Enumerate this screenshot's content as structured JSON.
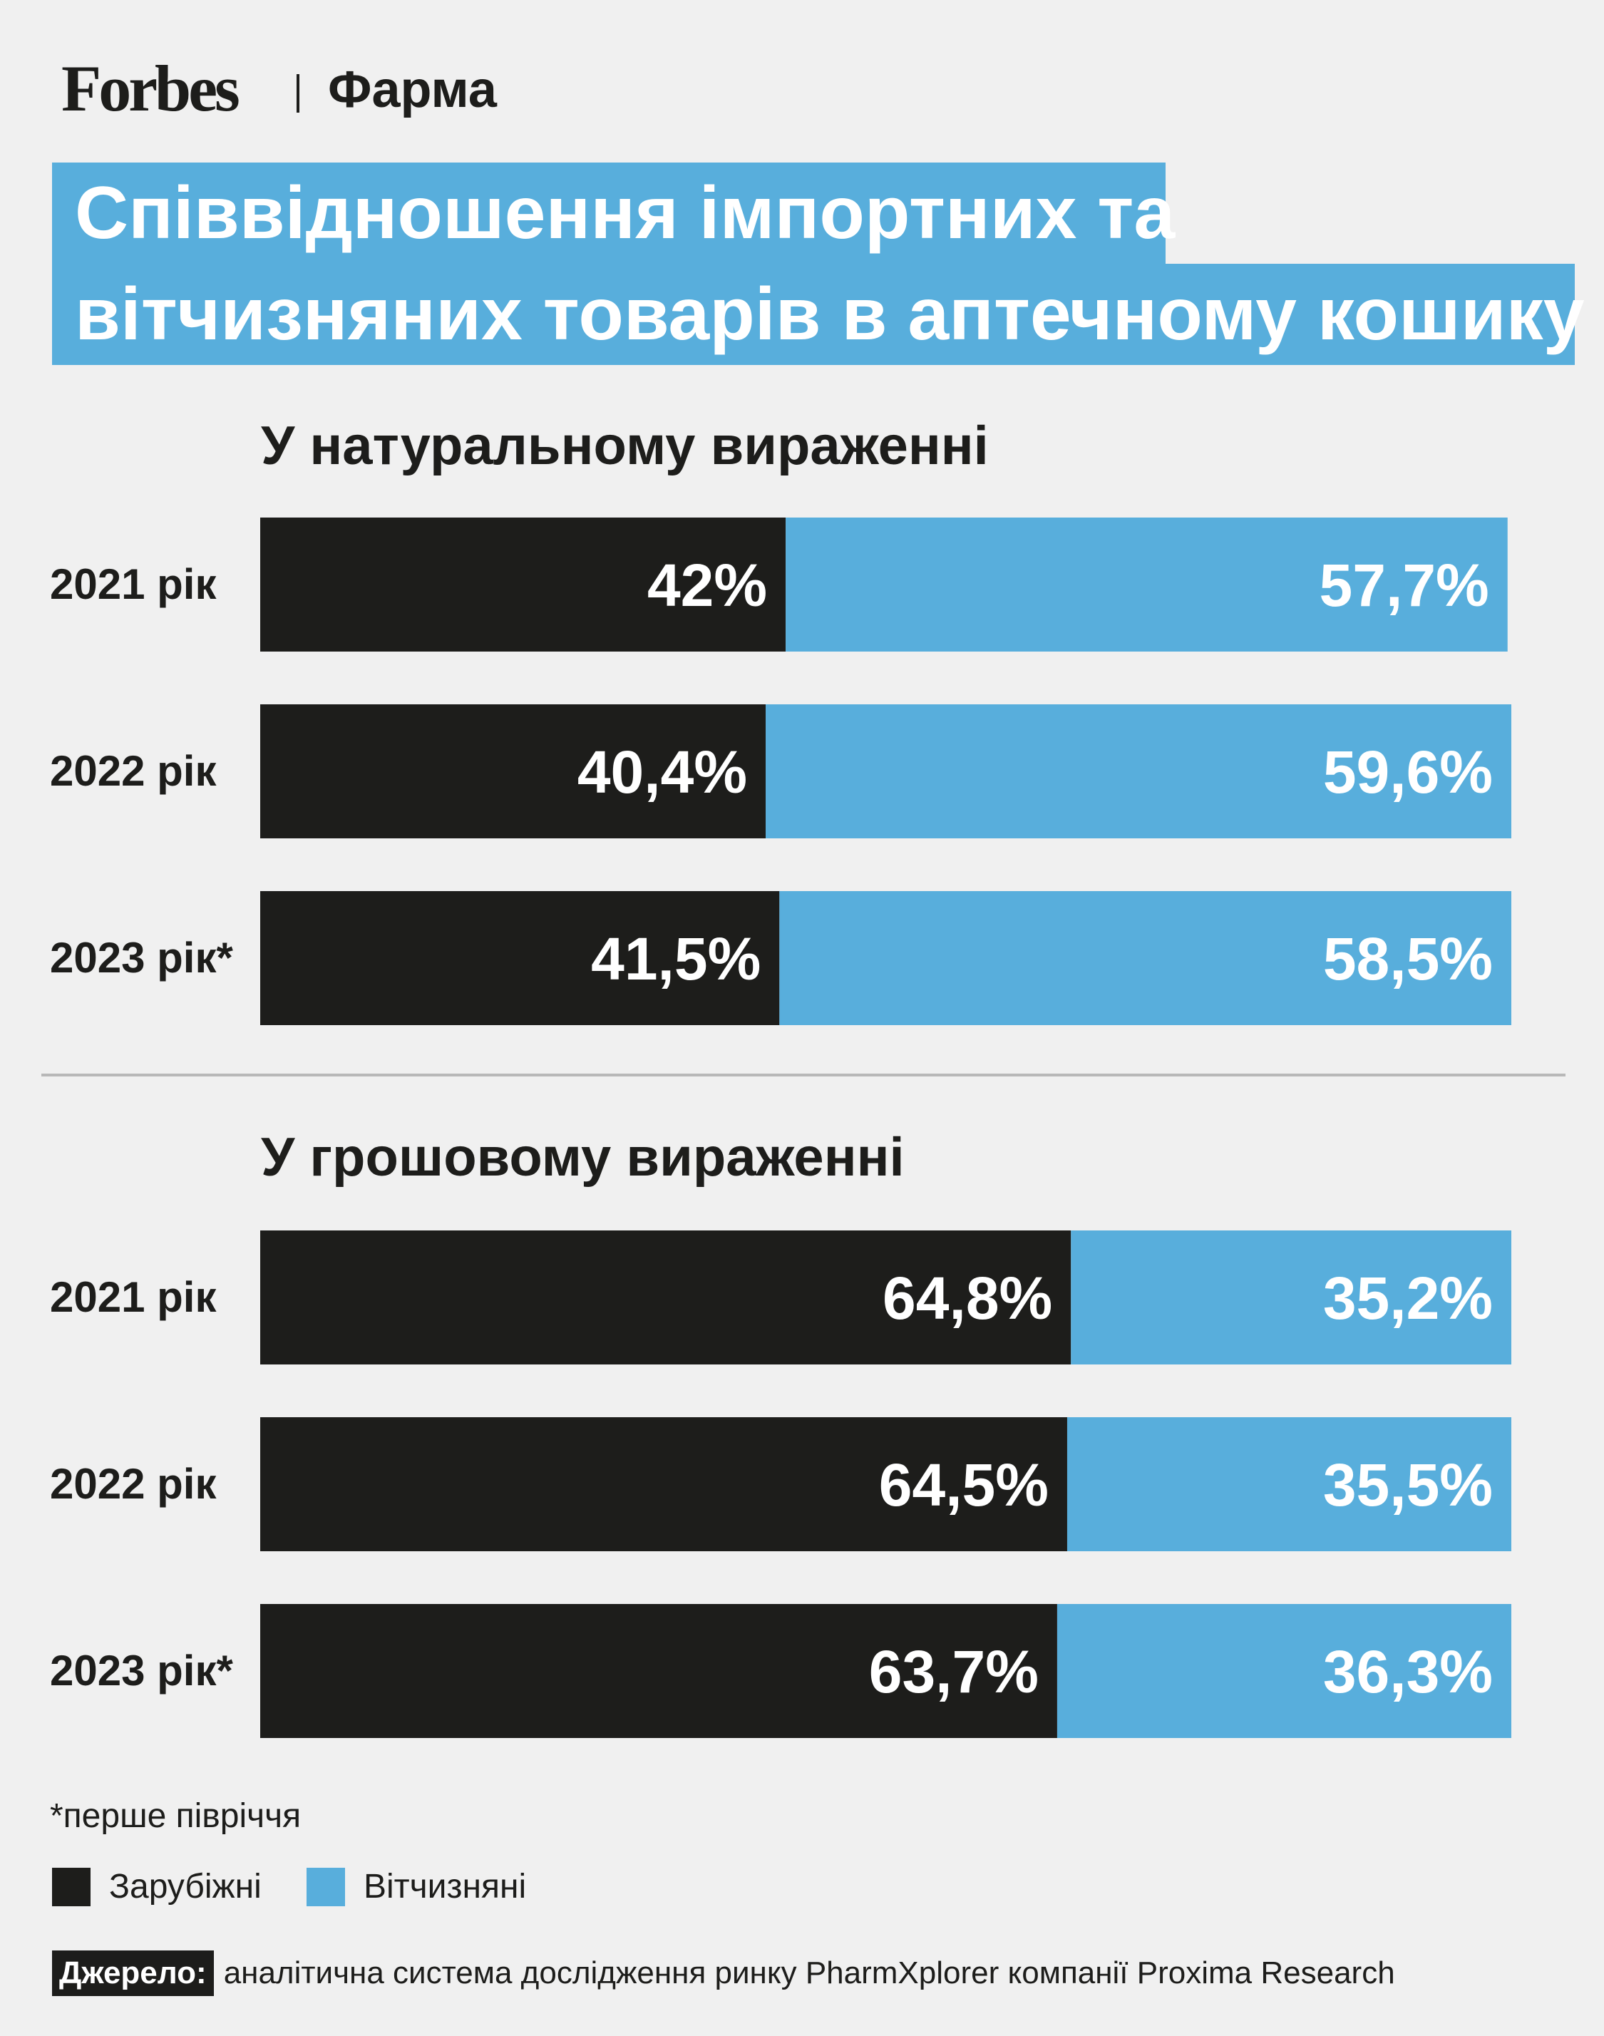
{
  "header": {
    "logo_text": "Forbes",
    "section": "Фарма"
  },
  "title_lines": [
    "Співвідношення імпортних та",
    "вітчизняних товарів в аптечному кошику"
  ],
  "colors": {
    "foreign": "#1d1d1b",
    "domestic": "#58aedc",
    "background": "#f0f0f0"
  },
  "chart_data": [
    {
      "type": "bar",
      "stacked": true,
      "orientation": "horizontal",
      "title": "У натуральному вираженні",
      "categories": [
        "2021 рік",
        "2022 рік",
        "2023 рік*"
      ],
      "series": [
        {
          "name": "Зарубіжні",
          "values": [
            42,
            40.4,
            41.5
          ],
          "labels": [
            "42%",
            "40,4%",
            "41,5%"
          ]
        },
        {
          "name": "Вітчизняні",
          "values": [
            57.7,
            59.6,
            58.5
          ],
          "labels": [
            "57,7%",
            "59,6%",
            "58,5%"
          ]
        }
      ],
      "xlim": [
        0,
        100
      ]
    },
    {
      "type": "bar",
      "stacked": true,
      "orientation": "horizontal",
      "title": "У грошовому вираженні",
      "categories": [
        "2021 рік",
        "2022 рік",
        "2023 рік*"
      ],
      "series": [
        {
          "name": "Зарубіжні",
          "values": [
            64.8,
            64.5,
            63.7
          ],
          "labels": [
            "64,8%",
            "64,5%",
            "63,7%"
          ]
        },
        {
          "name": "Вітчизняні",
          "values": [
            35.2,
            35.5,
            36.3
          ],
          "labels": [
            "35,2%",
            "35,5%",
            "36,3%"
          ]
        }
      ],
      "xlim": [
        0,
        100
      ]
    }
  ],
  "footnote": "*перше півріччя",
  "legend": [
    {
      "label": "Зарубіжні"
    },
    {
      "label": "Вітчизняні"
    }
  ],
  "source": {
    "label": "Джерело:",
    "text": "аналітична система дослідження ринку PharmXplorer компанії Proxima Research"
  }
}
